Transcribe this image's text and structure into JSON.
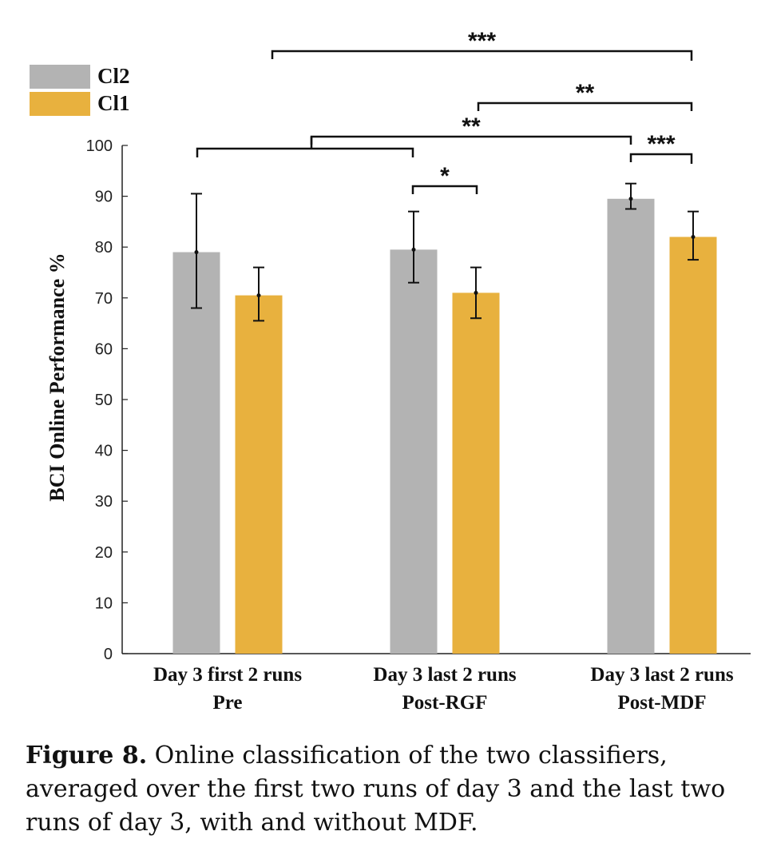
{
  "chart_data": {
    "type": "bar",
    "categories": [
      [
        "Day 3 first 2 runs",
        "Pre"
      ],
      [
        "Day 3 last 2 runs",
        "Post-RGF"
      ],
      [
        "Day 3 last 2 runs",
        "Post-MDF"
      ]
    ],
    "series": [
      {
        "name": "Cl2",
        "color": "#b3b3b3",
        "values": [
          79,
          79.5,
          89.5
        ],
        "err_low": [
          68,
          73,
          87.5
        ],
        "err_high": [
          90.5,
          87,
          92.5
        ]
      },
      {
        "name": "Cl1",
        "color": "#e8b13e",
        "values": [
          70.5,
          71,
          82
        ],
        "err_low": [
          65.5,
          66,
          77.5
        ],
        "err_high": [
          76,
          76,
          87
        ]
      }
    ],
    "ylabel": "BCI Online Performance %",
    "ylim": [
      0,
      100
    ],
    "yticks": [
      "0",
      "10",
      "20",
      "30",
      "40",
      "50",
      "60",
      "70",
      "80",
      "90",
      "100"
    ],
    "legend_position": "top-left",
    "significance": [
      {
        "label": "***",
        "from": "Cl2:Day 3 first 2 runs (Pre) vs Cl2:Post-RGF",
        "to": "Cl1:Post-MDF"
      },
      {
        "label": "**",
        "from": "Cl1:Post-RGF",
        "to": "Cl1:Post-MDF"
      },
      {
        "label": "**",
        "from": "Pre / Post-RGF group",
        "to": "Cl2:Post-MDF"
      },
      {
        "label": "***",
        "from": "Cl2:Post-MDF",
        "to": "Cl1:Post-MDF"
      },
      {
        "label": "*",
        "from": "Cl2:Post-RGF",
        "to": "Cl1:Post-RGF"
      }
    ]
  },
  "caption": {
    "label": "Figure 8.",
    "text": " Online classification of the two classifiers, averaged over the first two runs of day 3 and the last two runs of day 3, with and without MDF."
  }
}
